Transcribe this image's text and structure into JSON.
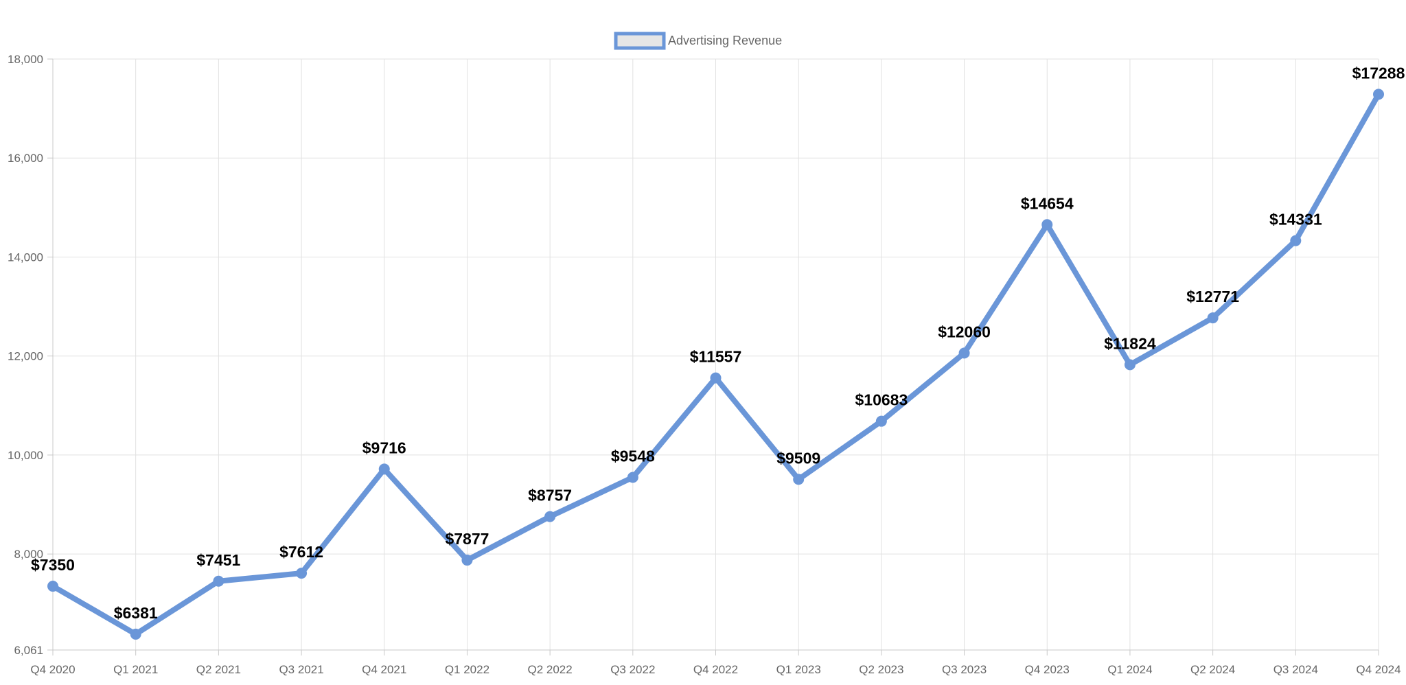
{
  "chart_data": {
    "type": "line",
    "categories": [
      "Q4 2020",
      "Q1 2021",
      "Q2 2021",
      "Q3 2021",
      "Q4 2021",
      "Q1 2022",
      "Q2 2022",
      "Q3 2022",
      "Q4 2022",
      "Q1 2023",
      "Q2 2023",
      "Q3 2023",
      "Q4 2023",
      "Q1 2024",
      "Q2 2024",
      "Q3 2024",
      "Q4 2024"
    ],
    "series": [
      {
        "name": "Advertising Revenue",
        "values": [
          7350,
          6381,
          7451,
          7612,
          9716,
          7877,
          8757,
          9548,
          11557,
          9509,
          10683,
          12060,
          14654,
          11824,
          12771,
          14331,
          17288
        ],
        "color": "#6a96d8",
        "data_labels": [
          "$7350",
          "$6381",
          "$7451",
          "$7612",
          "$9716",
          "$7877",
          "$8757",
          "$9548",
          "$11557",
          "$9509",
          "$10683",
          "$12060",
          "$14654",
          "$11824",
          "$12771",
          "$14331",
          "$17288"
        ]
      }
    ],
    "ylim": [
      6061,
      18000
    ],
    "y_ticks": [
      6061,
      8000,
      10000,
      12000,
      14000,
      16000,
      18000
    ],
    "y_tick_labels": [
      "6,061",
      "8,000",
      "10,000",
      "12,000",
      "14,000",
      "16,000",
      "18,000"
    ],
    "title": "",
    "xlabel": "",
    "ylabel": "",
    "grid": true,
    "legend_position": "top-center",
    "legend_fill_color": "#e6e6e6"
  }
}
